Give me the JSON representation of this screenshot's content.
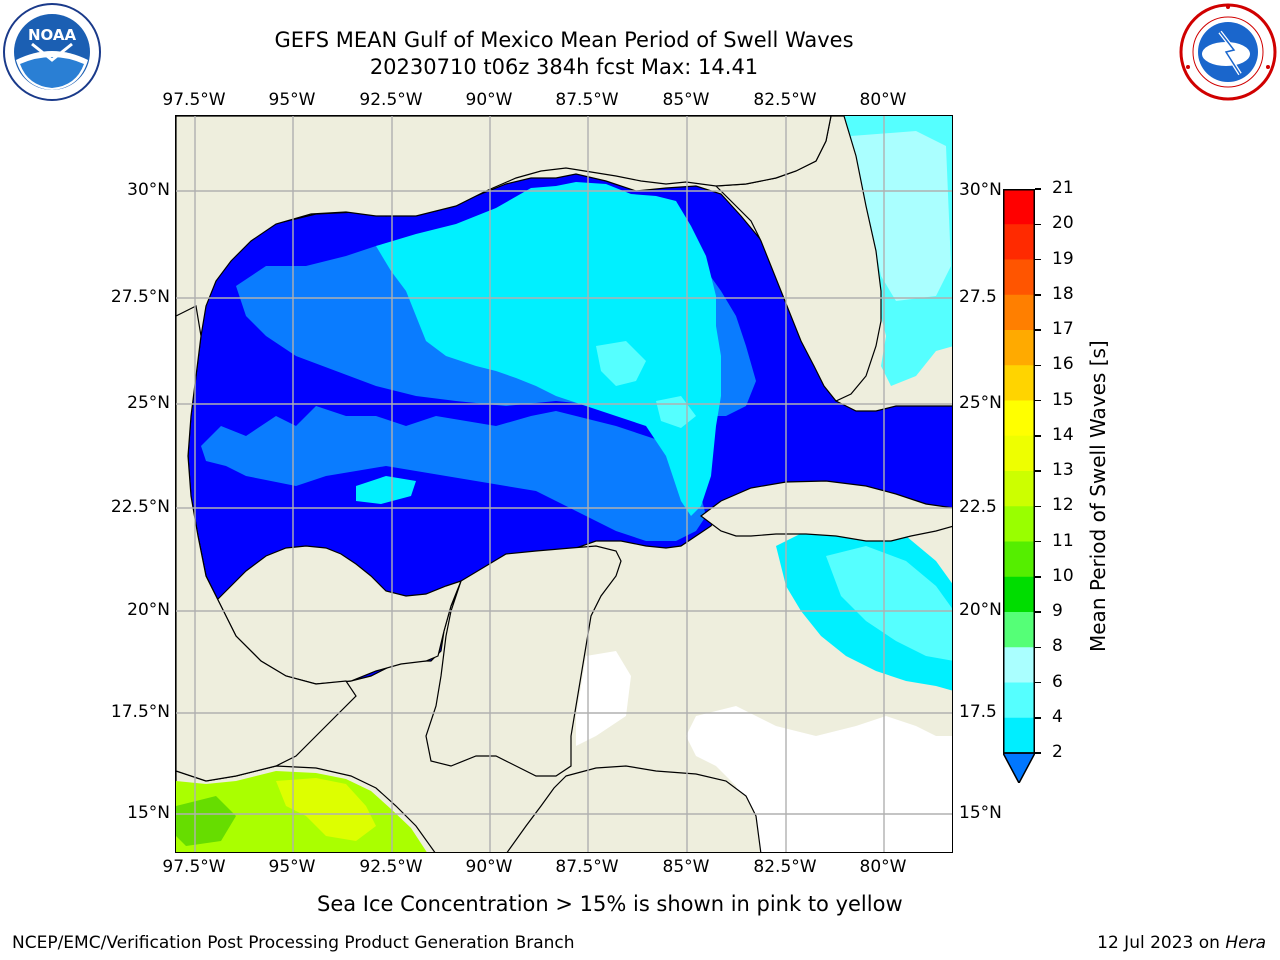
{
  "header": {
    "title_line1": "GEFS MEAN Gulf of Mexico Mean Period of Swell Waves",
    "title_line2": "20230710 t06z 384h fcst   Max: 14.41"
  },
  "logos": {
    "left": {
      "name": "noaa-logo",
      "text": "NOAA"
    },
    "right": {
      "name": "national-weather-service-logo"
    }
  },
  "map": {
    "x_ticks_top": [
      "97.5°W",
      "95°W",
      "92.5°W",
      "90°W",
      "87.5°W",
      "85°W",
      "82.5°W",
      "80°W"
    ],
    "x_ticks_bottom": [
      "97.5°W",
      "95°W",
      "92.5°W",
      "90°W",
      "87.5°W",
      "85°W",
      "82.5°W",
      "80°W"
    ],
    "y_ticks_left": [
      "30°N",
      "27.5°N",
      "25°N",
      "22.5°N",
      "20°N",
      "17.5°N",
      "15°N"
    ],
    "y_ticks_right": [
      "30°N",
      "27.5",
      "25°N",
      "22.5",
      "20°N",
      "17.5",
      "15°N"
    ],
    "colors": {
      "land": "#eeeedd",
      "ocean_default": "#0000ff",
      "grid": "#b0b0b0"
    }
  },
  "colorbar": {
    "title": "Mean Period of Swell Waves [s]",
    "ticks": [
      "21",
      "20",
      "19",
      "18",
      "17",
      "16",
      "15",
      "14",
      "13",
      "12",
      "11",
      "10",
      "9",
      "8",
      "6",
      "4",
      "2"
    ],
    "colors": [
      "#ff0000",
      "#ff2a00",
      "#ff5500",
      "#ff7f00",
      "#ffaa00",
      "#ffd400",
      "#ffff00",
      "#eeff00",
      "#ccff00",
      "#99ff00",
      "#55ee00",
      "#00dd00",
      "#55ff77",
      "#aaffff",
      "#55ffff",
      "#00eeff",
      "#0077ff"
    ]
  },
  "ice_note": "Sea Ice Concentration > 15% is shown in pink to yellow",
  "footer": {
    "left": "NCEP/EMC/Verification Post Processing Product Generation Branch",
    "right_prefix": "12 Jul 2023 on ",
    "right_host": "Hera"
  }
}
